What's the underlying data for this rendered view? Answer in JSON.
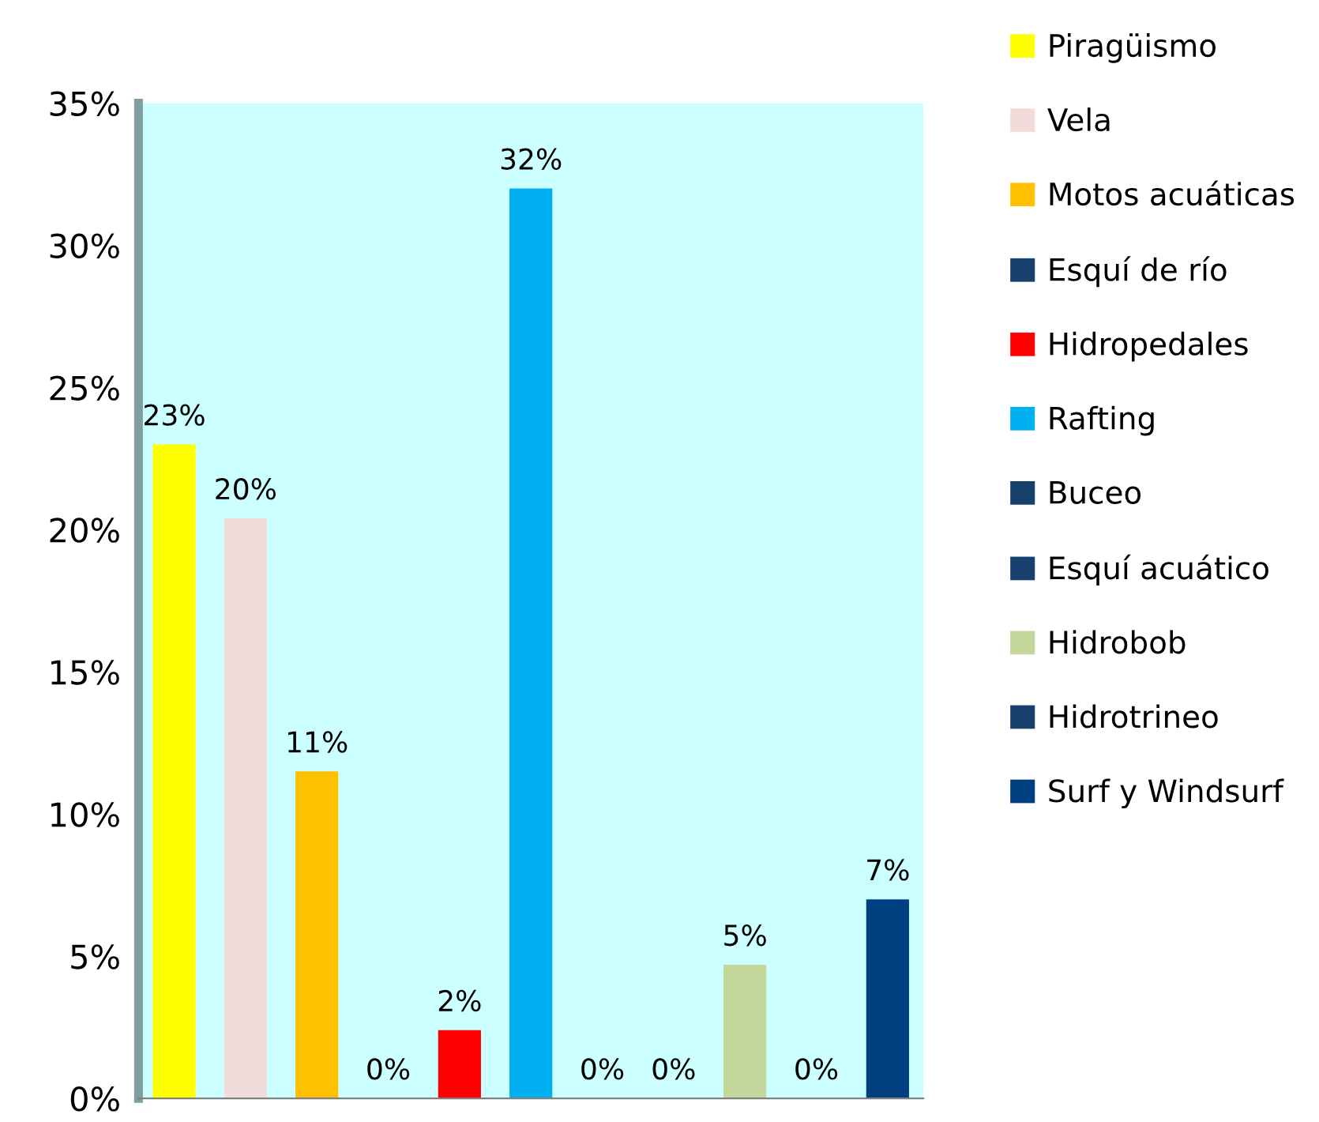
{
  "chart_data": {
    "type": "bar",
    "categories": [
      null,
      null,
      null,
      null,
      null,
      null,
      null,
      null,
      null,
      null,
      null
    ],
    "ylim": [
      0,
      35
    ],
    "yticks": [
      {
        "value": 0,
        "label": "0%"
      },
      {
        "value": 5,
        "label": "5%"
      },
      {
        "value": 10,
        "label": "10%"
      },
      {
        "value": 15,
        "label": "15%"
      },
      {
        "value": 20,
        "label": "20%"
      },
      {
        "value": 25,
        "label": "25%"
      },
      {
        "value": 30,
        "label": "30%"
      },
      {
        "value": 35,
        "label": "35%"
      }
    ],
    "grid": false,
    "legend": "right",
    "series": [
      {
        "name": "Piragüismo",
        "color": "#ffff00",
        "values": [
          23,
          null,
          null,
          null,
          null,
          null,
          null,
          null,
          null,
          null,
          null
        ],
        "value_labels": [
          "23%",
          null,
          null,
          null,
          null,
          null,
          null,
          null,
          null,
          null,
          null
        ]
      },
      {
        "name": "Vela",
        "color": "#f2dcdb",
        "values": [
          null,
          20.4,
          null,
          null,
          null,
          null,
          null,
          null,
          null,
          null,
          null
        ],
        "value_labels": [
          null,
          "20%",
          null,
          null,
          null,
          null,
          null,
          null,
          null,
          null,
          null
        ]
      },
      {
        "name": "Motos acuáticas",
        "color": "#ffc000",
        "values": [
          null,
          null,
          11.5,
          null,
          null,
          null,
          null,
          null,
          null,
          null,
          null
        ],
        "value_labels": [
          null,
          null,
          "11%",
          null,
          null,
          null,
          null,
          null,
          null,
          null,
          null
        ]
      },
      {
        "name": "Esquí de río",
        "color": "#17406d",
        "values": [
          null,
          null,
          null,
          0,
          null,
          null,
          null,
          null,
          null,
          null,
          null
        ],
        "value_labels": [
          null,
          null,
          null,
          "0%",
          null,
          null,
          null,
          null,
          null,
          null,
          null
        ]
      },
      {
        "name": "Hidropedales",
        "color": "#ff0000",
        "values": [
          null,
          null,
          null,
          null,
          2.4,
          null,
          null,
          null,
          null,
          null,
          null
        ],
        "value_labels": [
          null,
          null,
          null,
          null,
          "2%",
          null,
          null,
          null,
          null,
          null,
          null
        ]
      },
      {
        "name": "Rafting",
        "color": "#00b0f0",
        "values": [
          null,
          null,
          null,
          null,
          null,
          32,
          null,
          null,
          null,
          null,
          null
        ],
        "value_labels": [
          null,
          null,
          null,
          null,
          null,
          "32%",
          null,
          null,
          null,
          null,
          null
        ]
      },
      {
        "name": "Buceo",
        "color": "#17406d",
        "values": [
          null,
          null,
          null,
          null,
          null,
          null,
          0,
          null,
          null,
          null,
          null
        ],
        "value_labels": [
          null,
          null,
          null,
          null,
          null,
          null,
          "0%",
          null,
          null,
          null,
          null
        ]
      },
      {
        "name": "Esquí acuático",
        "color": "#17406d",
        "values": [
          null,
          null,
          null,
          null,
          null,
          null,
          null,
          0,
          null,
          null,
          null
        ],
        "value_labels": [
          null,
          null,
          null,
          null,
          null,
          null,
          null,
          "0%",
          null,
          null,
          null
        ]
      },
      {
        "name": "Hidrobob",
        "color": "#c4d79b",
        "values": [
          null,
          null,
          null,
          null,
          null,
          null,
          null,
          null,
          4.7,
          null,
          null
        ],
        "value_labels": [
          null,
          null,
          null,
          null,
          null,
          null,
          null,
          null,
          "5%",
          null,
          null
        ]
      },
      {
        "name": "Hidrotrineo",
        "color": "#17406d",
        "values": [
          null,
          null,
          null,
          null,
          null,
          null,
          null,
          null,
          null,
          0,
          null
        ],
        "value_labels": [
          null,
          null,
          null,
          null,
          null,
          null,
          null,
          null,
          null,
          "0%",
          null
        ]
      },
      {
        "name": "Surf y Windsurf",
        "color": "#003f7f",
        "values": [
          null,
          null,
          null,
          null,
          null,
          null,
          null,
          null,
          null,
          null,
          7
        ],
        "value_labels": [
          null,
          null,
          null,
          null,
          null,
          null,
          null,
          null,
          null,
          null,
          "7%"
        ]
      }
    ]
  }
}
